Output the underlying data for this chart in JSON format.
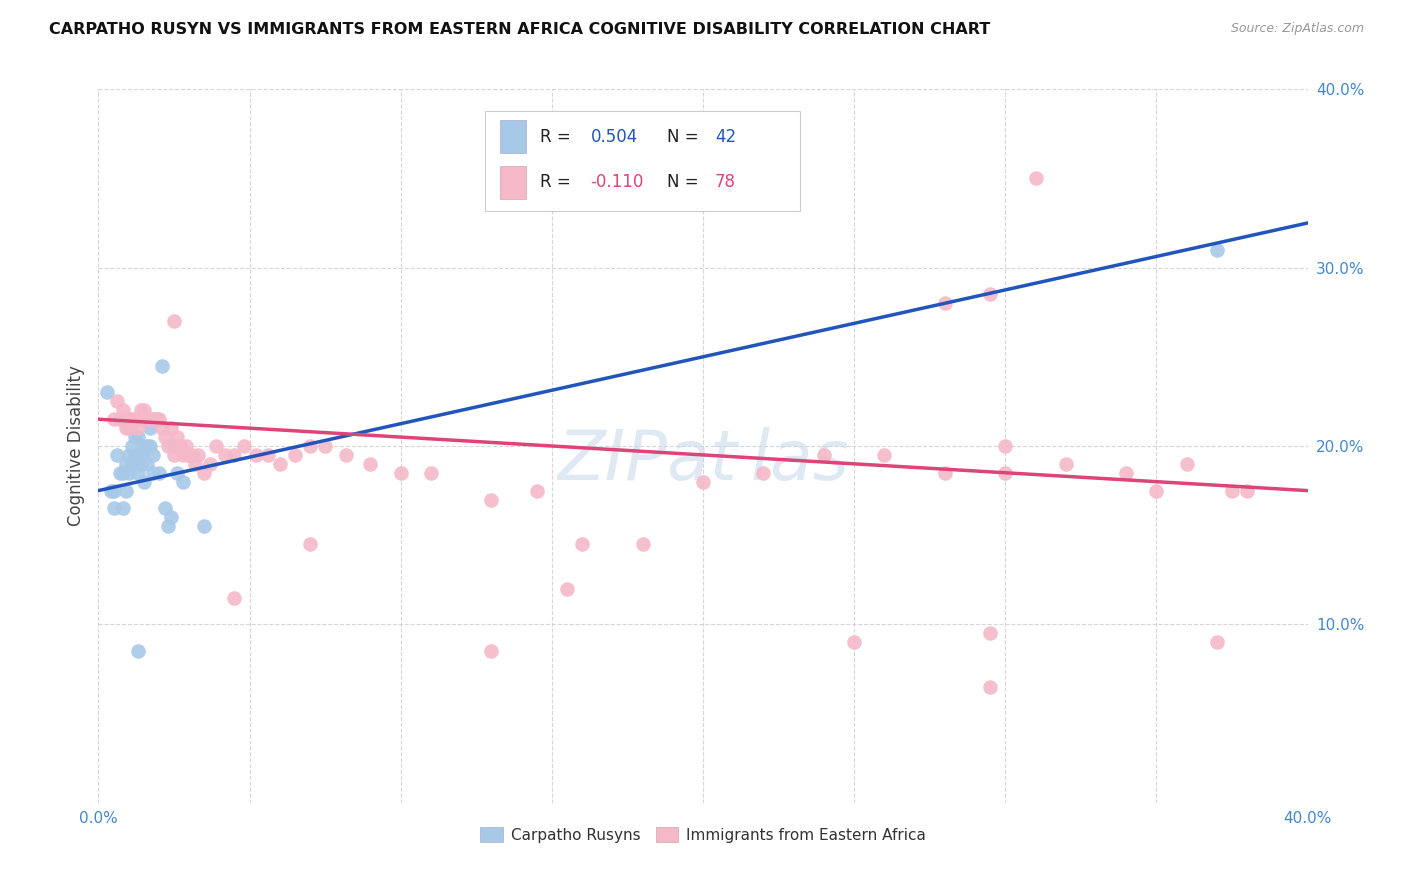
{
  "title": "CARPATHO RUSYN VS IMMIGRANTS FROM EASTERN AFRICA COGNITIVE DISABILITY CORRELATION CHART",
  "source": "Source: ZipAtlas.com",
  "ylabel": "Cognitive Disability",
  "xlim": [
    0.0,
    0.4
  ],
  "ylim": [
    0.0,
    0.4
  ],
  "blue_color": "#a8c8e8",
  "pink_color": "#f5b8c8",
  "line_blue": "#2255bb",
  "line_pink": "#dd4477",
  "tick_color": "#4488cc",
  "grid_color": "#cccccc",
  "blue_points_x": [
    0.003,
    0.004,
    0.005,
    0.005,
    0.006,
    0.007,
    0.008,
    0.008,
    0.009,
    0.009,
    0.01,
    0.01,
    0.011,
    0.011,
    0.012,
    0.012,
    0.013,
    0.013,
    0.013,
    0.014,
    0.014,
    0.015,
    0.015,
    0.016,
    0.016,
    0.017,
    0.017,
    0.018,
    0.018,
    0.019,
    0.02,
    0.021,
    0.022,
    0.023,
    0.024,
    0.025,
    0.026,
    0.028,
    0.03,
    0.035,
    0.37,
    0.013
  ],
  "blue_points_y": [
    0.23,
    0.175,
    0.165,
    0.175,
    0.195,
    0.185,
    0.165,
    0.185,
    0.175,
    0.19,
    0.195,
    0.185,
    0.2,
    0.19,
    0.195,
    0.205,
    0.185,
    0.195,
    0.205,
    0.19,
    0.195,
    0.2,
    0.18,
    0.2,
    0.19,
    0.21,
    0.2,
    0.195,
    0.185,
    0.215,
    0.185,
    0.245,
    0.165,
    0.155,
    0.16,
    0.2,
    0.185,
    0.18,
    0.195,
    0.155,
    0.31,
    0.085
  ],
  "pink_points_x": [
    0.005,
    0.006,
    0.007,
    0.008,
    0.009,
    0.01,
    0.01,
    0.011,
    0.012,
    0.013,
    0.014,
    0.014,
    0.015,
    0.015,
    0.016,
    0.016,
    0.017,
    0.018,
    0.019,
    0.02,
    0.021,
    0.022,
    0.023,
    0.024,
    0.025,
    0.026,
    0.027,
    0.028,
    0.029,
    0.03,
    0.031,
    0.032,
    0.033,
    0.035,
    0.037,
    0.039,
    0.042,
    0.045,
    0.048,
    0.052,
    0.056,
    0.06,
    0.065,
    0.07,
    0.075,
    0.082,
    0.09,
    0.1,
    0.11,
    0.13,
    0.145,
    0.16,
    0.18,
    0.2,
    0.22,
    0.24,
    0.26,
    0.28,
    0.3,
    0.32,
    0.34,
    0.36,
    0.38,
    0.25,
    0.045,
    0.07,
    0.13,
    0.155,
    0.025,
    0.295,
    0.37,
    0.28,
    0.295,
    0.295,
    0.31,
    0.35,
    0.375,
    0.3
  ],
  "pink_points_y": [
    0.215,
    0.225,
    0.215,
    0.22,
    0.21,
    0.215,
    0.21,
    0.215,
    0.215,
    0.21,
    0.215,
    0.22,
    0.215,
    0.22,
    0.215,
    0.215,
    0.215,
    0.215,
    0.215,
    0.215,
    0.21,
    0.205,
    0.2,
    0.21,
    0.195,
    0.205,
    0.2,
    0.195,
    0.2,
    0.195,
    0.195,
    0.19,
    0.195,
    0.185,
    0.19,
    0.2,
    0.195,
    0.195,
    0.2,
    0.195,
    0.195,
    0.19,
    0.195,
    0.2,
    0.2,
    0.195,
    0.19,
    0.185,
    0.185,
    0.17,
    0.175,
    0.145,
    0.145,
    0.18,
    0.185,
    0.195,
    0.195,
    0.185,
    0.185,
    0.19,
    0.185,
    0.19,
    0.175,
    0.09,
    0.115,
    0.145,
    0.085,
    0.12,
    0.27,
    0.065,
    0.09,
    0.28,
    0.285,
    0.095,
    0.35,
    0.175,
    0.175,
    0.2
  ]
}
